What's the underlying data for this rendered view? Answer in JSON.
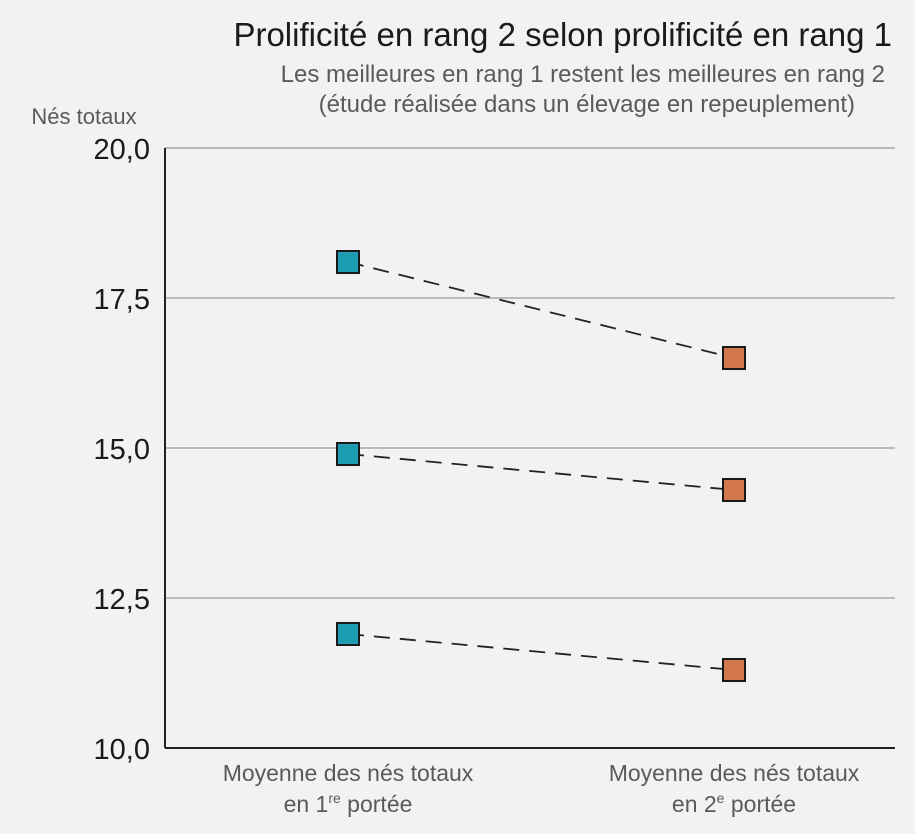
{
  "chart_data": {
    "type": "line",
    "title": "Prolificité en rang 2 selon prolificité en rang 1",
    "subtitle_line1": "Les meilleures en rang 1 restent les meilleures en rang 2",
    "subtitle_line2": "(étude réalisée dans un élevage en repeuplement)",
    "ylabel": "Nés totaux",
    "ylim": [
      10.0,
      20.0
    ],
    "yticks": [
      10.0,
      12.5,
      15.0,
      17.5,
      20.0
    ],
    "ytick_labels": [
      "10,0",
      "12,5",
      "15,0",
      "17,5",
      "20,0"
    ],
    "categories": [
      {
        "line1": "Moyenne des nés totaux",
        "line2_prefix": "en 1",
        "line2_sup": "re",
        "line2_suffix": " portée"
      },
      {
        "line1": "Moyenne des nés totaux",
        "line2_prefix": "en 2",
        "line2_sup": "e",
        "line2_suffix": " portée"
      }
    ],
    "pairs": [
      {
        "rang1": 18.1,
        "rang2": 16.5
      },
      {
        "rang1": 14.9,
        "rang2": 14.3
      },
      {
        "rang1": 11.9,
        "rang2": 11.3
      }
    ],
    "grid": true,
    "colors": {
      "rang1_marker": "#1f9db3",
      "rang2_marker": "#d2784a",
      "connector": "#222222",
      "gridline": "#a8a8a8",
      "axis": "#222222",
      "background": "#f2f2f2"
    }
  }
}
